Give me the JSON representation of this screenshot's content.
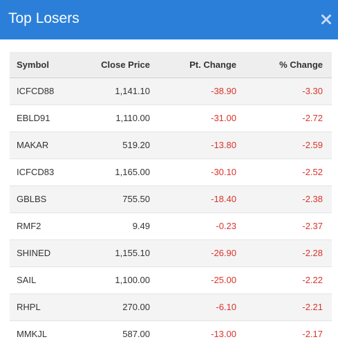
{
  "modal": {
    "title": "Top Losers",
    "close_icon": "close-icon",
    "header_color": "#2b7fd8",
    "negative_color": "#d9332b"
  },
  "table": {
    "headers": {
      "symbol": "Symbol",
      "close_price": "Close Price",
      "pt_change": "Pt. Change",
      "pct_change": "% Change"
    },
    "rows": [
      {
        "symbol": "ICFCD88",
        "close_price": "1,141.10",
        "pt_change": "-38.90",
        "pct_change": "-3.30"
      },
      {
        "symbol": "EBLD91",
        "close_price": "1,110.00",
        "pt_change": "-31.00",
        "pct_change": "-2.72"
      },
      {
        "symbol": "MAKAR",
        "close_price": "519.20",
        "pt_change": "-13.80",
        "pct_change": "-2.59"
      },
      {
        "symbol": "ICFCD83",
        "close_price": "1,165.00",
        "pt_change": "-30.10",
        "pct_change": "-2.52"
      },
      {
        "symbol": "GBLBS",
        "close_price": "755.50",
        "pt_change": "-18.40",
        "pct_change": "-2.38"
      },
      {
        "symbol": "RMF2",
        "close_price": "9.49",
        "pt_change": "-0.23",
        "pct_change": "-2.37"
      },
      {
        "symbol": "SHINED",
        "close_price": "1,155.10",
        "pt_change": "-26.90",
        "pct_change": "-2.28"
      },
      {
        "symbol": "SAIL",
        "close_price": "1,100.00",
        "pt_change": "-25.00",
        "pct_change": "-2.22"
      },
      {
        "symbol": "RHPL",
        "close_price": "270.00",
        "pt_change": "-6.10",
        "pct_change": "-2.21"
      },
      {
        "symbol": "MMKJL",
        "close_price": "587.00",
        "pt_change": "-13.00",
        "pct_change": "-2.17"
      }
    ]
  }
}
